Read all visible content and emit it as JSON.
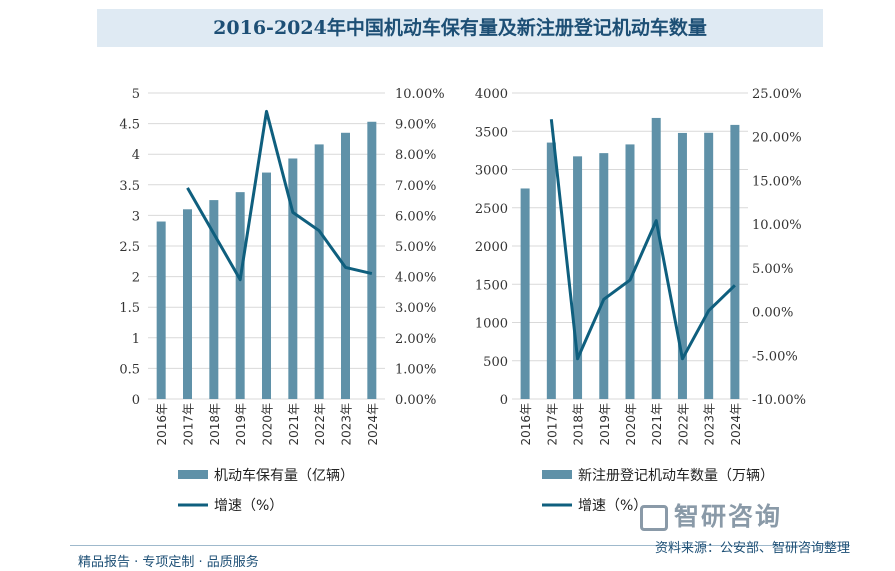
{
  "title": "2016-2024年中国机动车保有量及新注册登记机动车数量",
  "footer_left": "精品报告 · 专项定制 · 品质服务",
  "footer_right": "资料来源：公安部、智研咨询整理",
  "logo_text": "智研咨询",
  "colors": {
    "bar": "#5f91a8",
    "line": "#0f5f7e",
    "grid": "#d9d9d9",
    "title": "#1d4f75"
  },
  "chart_data": [
    {
      "type": "bar+line",
      "categories": [
        "2016年",
        "2017年",
        "2018年",
        "2019年",
        "2020年",
        "2021年",
        "2022年",
        "2023年",
        "2024年"
      ],
      "series": [
        {
          "name": "机动车保有量（亿辆）",
          "type": "bar",
          "axis": "left",
          "values": [
            2.9,
            3.1,
            3.25,
            3.38,
            3.7,
            3.93,
            4.16,
            4.35,
            4.53
          ]
        },
        {
          "name": "增速（%）",
          "type": "line",
          "axis": "right",
          "values": [
            null,
            6.9,
            5.4,
            3.9,
            9.4,
            6.1,
            5.5,
            4.3,
            4.1
          ]
        }
      ],
      "ylim": [
        0,
        5
      ],
      "yticks": [
        "0",
        "0.5",
        "1",
        "1.5",
        "2",
        "2.5",
        "3",
        "3.5",
        "4",
        "4.5",
        "5"
      ],
      "y2lim": [
        0,
        10
      ],
      "y2ticks": [
        "0.00%",
        "1.00%",
        "2.00%",
        "3.00%",
        "4.00%",
        "5.00%",
        "6.00%",
        "7.00%",
        "8.00%",
        "9.00%",
        "10.00%"
      ],
      "legend": "bottom",
      "grid": true
    },
    {
      "type": "bar+line",
      "categories": [
        "2016年",
        "2017年",
        "2018年",
        "2019年",
        "2020年",
        "2021年",
        "2022年",
        "2023年",
        "2024年"
      ],
      "series": [
        {
          "name": "新注册登记机动车数量（万辆）",
          "type": "bar",
          "axis": "left",
          "values": [
            2752,
            3352,
            3172,
            3214,
            3328,
            3674,
            3478,
            3480,
            3583
          ]
        },
        {
          "name": "增速（%）",
          "type": "line",
          "axis": "right",
          "values": [
            null,
            22.0,
            -5.4,
            1.4,
            3.6,
            10.4,
            -5.4,
            0.1,
            3.0
          ]
        }
      ],
      "ylim": [
        0,
        4000
      ],
      "yticks": [
        "0",
        "500",
        "1000",
        "1500",
        "2000",
        "2500",
        "3000",
        "3500",
        "4000"
      ],
      "y2lim": [
        -10,
        25
      ],
      "y2ticks": [
        "-10.00%",
        "-5.00%",
        "0.00%",
        "5.00%",
        "10.00%",
        "15.00%",
        "20.00%",
        "25.00%"
      ],
      "legend": "bottom",
      "grid": true
    }
  ]
}
